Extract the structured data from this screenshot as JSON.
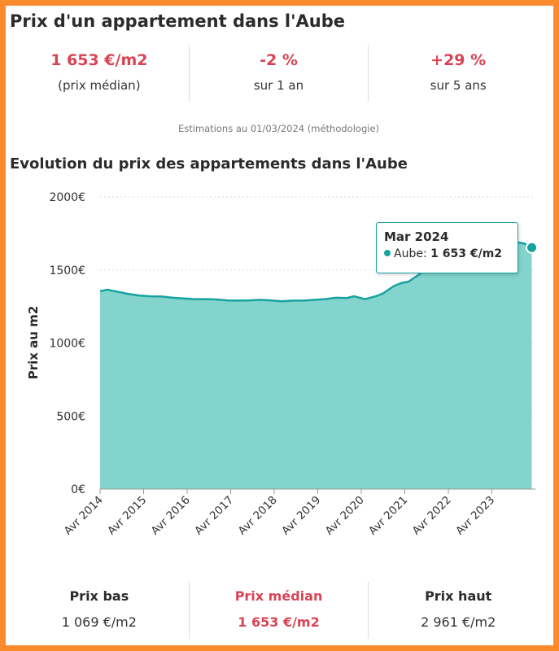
{
  "page": {
    "title": "Prix d'un appartement dans l'Aube"
  },
  "summary": {
    "median_price": "1 653 €/m2",
    "median_caption": "(prix médian)",
    "change_1y": "-2 %",
    "change_1y_caption": "sur 1 an",
    "change_5y": "+29 %",
    "change_5y_caption": "sur 5 ans"
  },
  "estimation_note": "Estimations au 01/03/2024 (méthodologie)",
  "colors": {
    "accent": "#d94455",
    "series_line": "#17a2a0",
    "series_fill": "#83d4cd",
    "frame": "#f98b2c"
  },
  "chart_data": {
    "type": "area",
    "title": "Evolution du prix des appartements dans l'Aube",
    "ylabel": "Prix au m2",
    "xlabel": "",
    "ylim": [
      0,
      2000
    ],
    "y_ticks": [
      "0€",
      "500€",
      "1000€",
      "1500€",
      "2000€"
    ],
    "x_ticks": [
      "Avr 2014",
      "Avr 2015",
      "Avr 2016",
      "Avr 2017",
      "Avr 2018",
      "Avr 2019",
      "Avr 2020",
      "Avr 2021",
      "Avr 2022",
      "Avr 2023"
    ],
    "grid": true,
    "series": [
      {
        "name": "Aube",
        "points": [
          [
            "2014-04",
            1355
          ],
          [
            "2014-06",
            1365
          ],
          [
            "2014-09",
            1350
          ],
          [
            "2014-12",
            1335
          ],
          [
            "2015-03",
            1325
          ],
          [
            "2015-06",
            1320
          ],
          [
            "2015-09",
            1318
          ],
          [
            "2015-12",
            1310
          ],
          [
            "2016-03",
            1305
          ],
          [
            "2016-06",
            1300
          ],
          [
            "2016-09",
            1300
          ],
          [
            "2016-12",
            1298
          ],
          [
            "2017-03",
            1292
          ],
          [
            "2017-06",
            1290
          ],
          [
            "2017-09",
            1292
          ],
          [
            "2017-12",
            1295
          ],
          [
            "2018-03",
            1292
          ],
          [
            "2018-06",
            1285
          ],
          [
            "2018-09",
            1290
          ],
          [
            "2018-12",
            1290
          ],
          [
            "2019-03",
            1295
          ],
          [
            "2019-06",
            1300
          ],
          [
            "2019-09",
            1310
          ],
          [
            "2019-12",
            1308
          ],
          [
            "2020-02",
            1320
          ],
          [
            "2020-05",
            1300
          ],
          [
            "2020-08",
            1320
          ],
          [
            "2020-10",
            1340
          ],
          [
            "2021-01",
            1390
          ],
          [
            "2021-03",
            1410
          ],
          [
            "2021-05",
            1420
          ],
          [
            "2021-08",
            1470
          ],
          [
            "2021-11",
            1520
          ],
          [
            "2022-03",
            1570
          ],
          [
            "2022-07",
            1600
          ],
          [
            "2022-10",
            1630
          ],
          [
            "2023-01",
            1660
          ],
          [
            "2023-04",
            1680
          ],
          [
            "2023-07",
            1690
          ],
          [
            "2023-10",
            1695
          ],
          [
            "2024-01",
            1680
          ],
          [
            "2024-03",
            1653
          ]
        ]
      }
    ],
    "tooltip": {
      "title": "Mar 2024",
      "series": "Aube",
      "value": "1 653 €/m2"
    }
  },
  "price_range": {
    "low_label": "Prix bas",
    "low_value": "1 069 €/m2",
    "median_label": "Prix médian",
    "median_value": "1 653 €/m2",
    "high_label": "Prix haut",
    "high_value": "2 961 €/m2"
  }
}
